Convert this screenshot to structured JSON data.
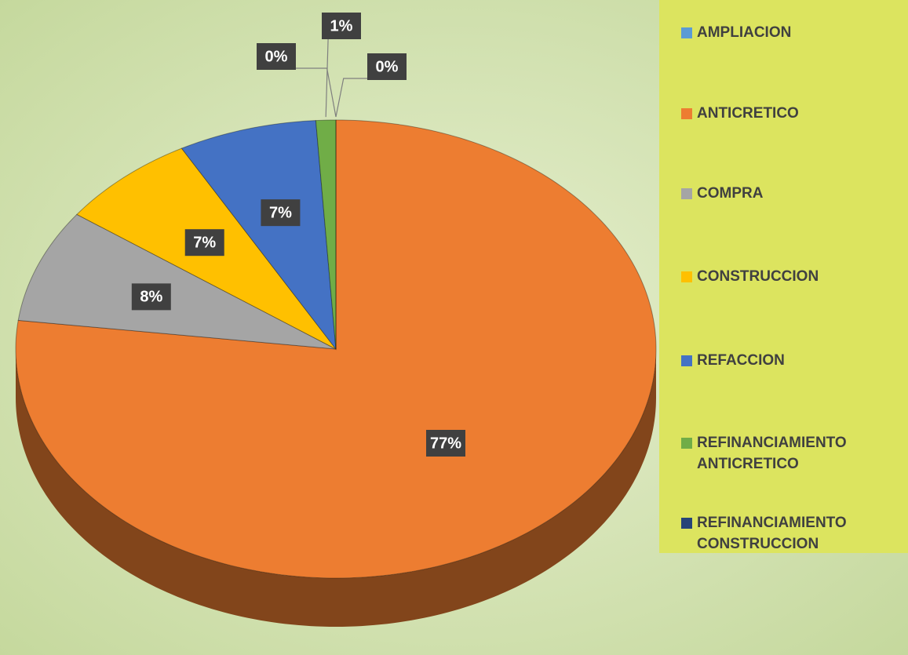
{
  "chart_data": {
    "type": "pie",
    "categories": [
      "AMPLIACION",
      "ANTICRETICO",
      "COMPRA",
      "CONSTRUCCION",
      "REFACCION",
      "REFINANCIAMIENTO ANTICRETICO",
      "REFINANCIAMIENTO CONSTRUCCION"
    ],
    "values": [
      0,
      77,
      8,
      7,
      7,
      1,
      0
    ],
    "value_labels": [
      "0%",
      "77%",
      "8%",
      "7%",
      "7%",
      "1%",
      "0%"
    ],
    "colors": [
      "#5b9bd5",
      "#ed7d31",
      "#a5a5a5",
      "#ffc000",
      "#4472c4",
      "#70ad47",
      "#264478"
    ],
    "legend": "right"
  }
}
